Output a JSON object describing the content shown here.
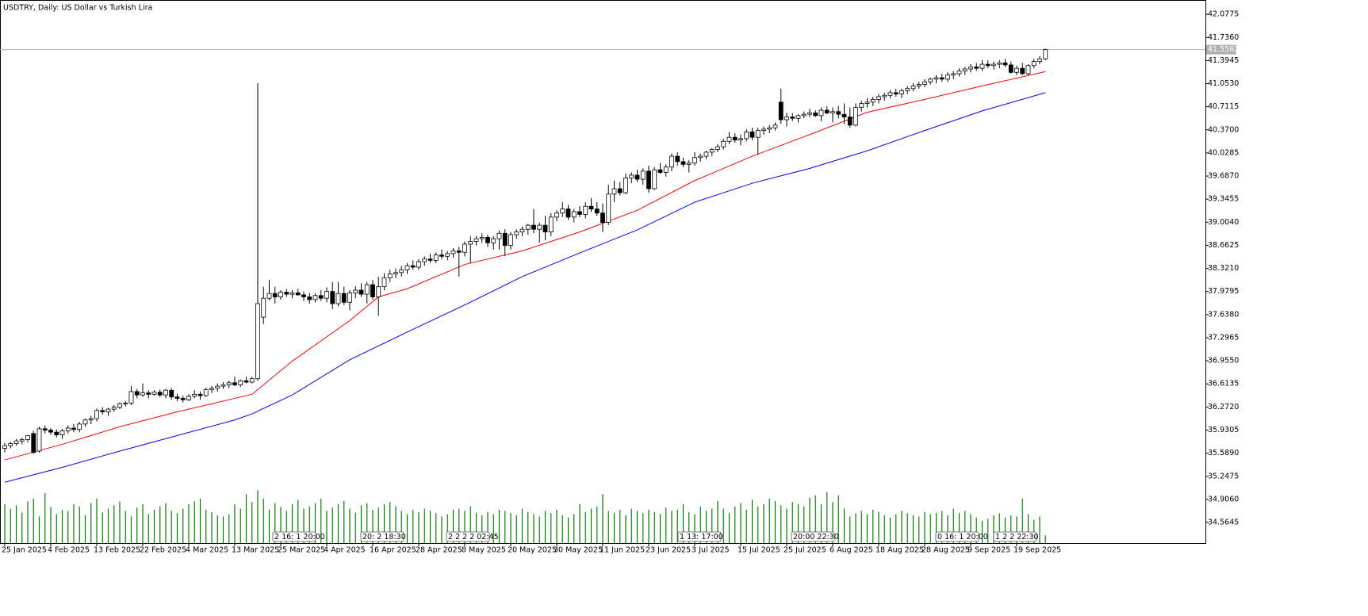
{
  "chart_data": {
    "type": "candlestick",
    "title": "USDTRY, Daily:  US Dollar vs Turkish Lira",
    "up_color": "#ffffff",
    "down_color": "#000000",
    "volume_color": "#008000",
    "ylim": [
      34.26,
      42.29
    ],
    "yticks": [
      {
        "value": 34.906,
        "label": "34.9060"
      },
      34.5645,
      35.2475,
      {
        "value": 35.589,
        "label": "35.5890"
      },
      35.9305,
      {
        "value": 36.272,
        "label": "36.2720"
      },
      36.6135,
      {
        "value": 36.955,
        "label": "36.9550"
      },
      37.2965,
      {
        "value": 37.638,
        "label": "37.6380"
      },
      37.9795,
      {
        "value": 38.321,
        "label": "38.3210"
      },
      38.6625,
      {
        "value": 39.004,
        "label": "39.0040"
      },
      39.3455,
      {
        "value": 39.687,
        "label": "39.6870"
      },
      40.0285,
      {
        "value": 40.37,
        "label": "40.3700"
      },
      40.7115,
      {
        "value": 41.053,
        "label": "41.0530"
      },
      41.3945,
      {
        "value": 41.736,
        "label": "41.7360"
      },
      42.0775
    ],
    "x_labels": [
      "25 Jan 2025",
      "4 Feb 2025",
      "13 Feb 2025",
      "22 Feb 2025",
      "4 Mar 2025",
      "13 Mar 2025",
      "25 Mar 2025",
      "4 Apr 2025",
      "16 Apr 2025",
      "28 Apr 2025",
      "8 May 2025",
      "20 May 2025",
      "30 May 2025",
      "11 Jun 2025",
      "23 Jun 2025",
      "3 Jul 2025",
      "15 Jul 2025",
      "25 Jul 2025",
      "6 Aug 2025",
      "18 Aug 2025",
      "28 Aug 2025",
      "9 Sep 2025",
      "19 Sep 2025"
    ],
    "ohlc": [
      [
        35.66,
        35.74,
        35.6,
        35.7
      ],
      [
        35.7,
        35.76,
        35.66,
        35.73
      ],
      [
        35.73,
        35.8,
        35.7,
        35.77
      ],
      [
        35.77,
        35.82,
        35.72,
        35.79
      ],
      [
        35.79,
        35.86,
        35.75,
        35.85
      ],
      [
        35.88,
        35.92,
        35.58,
        35.6
      ],
      [
        35.62,
        35.98,
        35.6,
        35.95
      ],
      [
        35.95,
        36.0,
        35.88,
        35.93
      ],
      [
        35.93,
        35.96,
        35.86,
        35.9
      ],
      [
        35.9,
        35.94,
        35.82,
        35.86
      ],
      [
        35.86,
        35.95,
        35.8,
        35.92
      ],
      [
        35.92,
        36.0,
        35.88,
        35.96
      ],
      [
        35.96,
        36.02,
        35.9,
        35.94
      ],
      [
        35.94,
        36.05,
        35.9,
        36.02
      ],
      [
        36.02,
        36.1,
        35.98,
        36.08
      ],
      [
        36.08,
        36.14,
        36.02,
        36.1
      ],
      [
        36.1,
        36.25,
        36.06,
        36.22
      ],
      [
        36.22,
        36.27,
        36.16,
        36.2
      ],
      [
        36.2,
        36.26,
        36.14,
        36.24
      ],
      [
        36.24,
        36.3,
        36.2,
        36.27
      ],
      [
        36.27,
        36.34,
        36.24,
        36.32
      ],
      [
        36.32,
        36.36,
        36.28,
        36.33
      ],
      [
        36.33,
        36.58,
        36.3,
        36.5
      ],
      [
        36.5,
        36.54,
        36.4,
        36.45
      ],
      [
        36.45,
        36.62,
        36.42,
        36.48
      ],
      [
        36.48,
        36.52,
        36.4,
        36.46
      ],
      [
        36.46,
        36.52,
        36.44,
        36.49
      ],
      [
        36.49,
        36.53,
        36.42,
        36.45
      ],
      [
        36.45,
        36.54,
        36.4,
        36.52
      ],
      [
        36.52,
        36.55,
        36.38,
        36.42
      ],
      [
        36.42,
        36.47,
        36.36,
        36.4
      ],
      [
        36.4,
        36.44,
        36.34,
        36.38
      ],
      [
        36.38,
        36.46,
        36.36,
        36.43
      ],
      [
        36.43,
        36.52,
        36.4,
        36.46
      ],
      [
        36.46,
        36.5,
        36.38,
        36.44
      ],
      [
        36.44,
        36.56,
        36.42,
        36.53
      ],
      [
        36.53,
        36.58,
        36.48,
        36.55
      ],
      [
        36.55,
        36.62,
        36.5,
        36.58
      ],
      [
        36.58,
        36.64,
        36.54,
        36.6
      ],
      [
        36.6,
        36.66,
        36.55,
        36.63
      ],
      [
        36.63,
        36.72,
        36.58,
        36.6
      ],
      [
        36.6,
        36.68,
        36.57,
        36.66
      ],
      [
        36.66,
        36.72,
        36.62,
        36.64
      ],
      [
        36.64,
        36.72,
        36.62,
        36.69
      ],
      [
        36.69,
        41.06,
        36.66,
        37.8
      ],
      [
        37.6,
        38.05,
        37.5,
        37.88
      ],
      [
        37.88,
        38.15,
        37.85,
        37.95
      ],
      [
        37.95,
        38.05,
        37.8,
        37.9
      ],
      [
        37.9,
        38.0,
        37.86,
        37.97
      ],
      [
        37.97,
        38.02,
        37.9,
        37.94
      ],
      [
        37.94,
        38.0,
        37.88,
        37.96
      ],
      [
        37.96,
        38.02,
        37.92,
        37.93
      ],
      [
        37.93,
        37.98,
        37.84,
        37.9
      ],
      [
        37.9,
        37.96,
        37.8,
        37.86
      ],
      [
        37.86,
        37.95,
        37.82,
        37.92
      ],
      [
        37.92,
        38.0,
        37.84,
        37.88
      ],
      [
        37.88,
        38.04,
        37.82,
        37.98
      ],
      [
        37.98,
        38.12,
        37.72,
        37.8
      ],
      [
        37.8,
        38.12,
        37.76,
        37.95
      ],
      [
        37.95,
        38.05,
        37.78,
        37.82
      ],
      [
        37.82,
        38.0,
        37.7,
        37.96
      ],
      [
        37.96,
        38.06,
        37.88,
        38.0
      ],
      [
        38.0,
        38.1,
        37.9,
        37.94
      ],
      [
        37.94,
        38.12,
        37.8,
        38.08
      ],
      [
        38.08,
        38.15,
        37.86,
        37.9
      ],
      [
        37.9,
        38.2,
        37.62,
        38.05
      ],
      [
        38.05,
        38.25,
        38.0,
        38.18
      ],
      [
        38.18,
        38.3,
        38.12,
        38.24
      ],
      [
        38.24,
        38.32,
        38.18,
        38.26
      ],
      [
        38.26,
        38.36,
        38.2,
        38.3
      ],
      [
        38.3,
        38.4,
        38.24,
        38.36
      ],
      [
        38.36,
        38.44,
        38.3,
        38.34
      ],
      [
        38.34,
        38.46,
        38.3,
        38.42
      ],
      [
        38.42,
        38.5,
        38.36,
        38.46
      ],
      [
        38.46,
        38.54,
        38.4,
        38.44
      ],
      [
        38.44,
        38.56,
        38.4,
        38.52
      ],
      [
        38.52,
        38.6,
        38.46,
        38.5
      ],
      [
        38.5,
        38.58,
        38.44,
        38.54
      ],
      [
        38.54,
        38.62,
        38.48,
        38.58
      ],
      [
        38.58,
        38.64,
        38.2,
        38.56
      ],
      [
        38.56,
        38.72,
        38.5,
        38.68
      ],
      [
        38.68,
        38.8,
        38.4,
        38.72
      ],
      [
        38.72,
        38.8,
        38.66,
        38.76
      ],
      [
        38.76,
        38.84,
        38.7,
        38.78
      ],
      [
        38.78,
        38.82,
        38.64,
        38.7
      ],
      [
        38.7,
        38.8,
        38.6,
        38.76
      ],
      [
        38.76,
        38.88,
        38.6,
        38.84
      ],
      [
        38.84,
        38.9,
        38.5,
        38.66
      ],
      [
        38.66,
        38.86,
        38.6,
        38.82
      ],
      [
        38.82,
        38.9,
        38.76,
        38.86
      ],
      [
        38.86,
        38.94,
        38.8,
        38.9
      ],
      [
        38.9,
        38.98,
        38.82,
        38.96
      ],
      [
        38.96,
        39.2,
        38.84,
        38.9
      ],
      [
        38.9,
        39.0,
        38.7,
        38.96
      ],
      [
        38.96,
        39.1,
        38.74,
        38.86
      ],
      [
        38.86,
        39.14,
        38.8,
        39.08
      ],
      [
        39.08,
        39.18,
        39.02,
        39.14
      ],
      [
        39.14,
        39.3,
        39.08,
        39.2
      ],
      [
        39.2,
        39.26,
        39.04,
        39.08
      ],
      [
        39.08,
        39.2,
        39.0,
        39.16
      ],
      [
        39.16,
        39.24,
        39.08,
        39.12
      ],
      [
        39.12,
        39.3,
        39.06,
        39.24
      ],
      [
        39.24,
        39.36,
        39.16,
        39.2
      ],
      [
        39.2,
        39.3,
        39.1,
        39.14
      ],
      [
        39.14,
        39.28,
        38.86,
        39.0
      ],
      [
        39.0,
        39.56,
        38.96,
        39.42
      ],
      [
        39.42,
        39.62,
        39.3,
        39.5
      ],
      [
        39.5,
        39.6,
        39.4,
        39.44
      ],
      [
        39.44,
        39.72,
        39.42,
        39.66
      ],
      [
        39.66,
        39.74,
        39.58,
        39.7
      ],
      [
        39.7,
        39.78,
        39.6,
        39.64
      ],
      [
        39.64,
        39.8,
        39.56,
        39.76
      ],
      [
        39.76,
        39.84,
        39.44,
        39.5
      ],
      [
        39.5,
        39.82,
        39.48,
        39.78
      ],
      [
        39.78,
        39.88,
        39.72,
        39.74
      ],
      [
        39.74,
        39.86,
        39.68,
        39.82
      ],
      [
        39.82,
        40.02,
        39.76,
        39.98
      ],
      [
        39.98,
        40.04,
        39.84,
        39.9
      ],
      [
        39.9,
        39.96,
        39.82,
        39.86
      ],
      [
        39.86,
        39.92,
        39.74,
        39.88
      ],
      [
        39.88,
        40.04,
        39.84,
        39.96
      ],
      [
        39.96,
        40.02,
        39.9,
        39.98
      ],
      [
        39.98,
        40.06,
        39.94,
        40.04
      ],
      [
        40.04,
        40.1,
        39.98,
        40.08
      ],
      [
        40.08,
        40.16,
        40.04,
        40.12
      ],
      [
        40.12,
        40.24,
        40.08,
        40.2
      ],
      [
        40.2,
        40.34,
        40.16,
        40.26
      ],
      [
        40.26,
        40.32,
        40.18,
        40.22
      ],
      [
        40.22,
        40.3,
        40.14,
        40.24
      ],
      [
        40.24,
        40.38,
        40.2,
        40.34
      ],
      [
        40.34,
        40.4,
        40.22,
        40.26
      ],
      [
        40.26,
        40.4,
        40.0,
        40.36
      ],
      [
        40.36,
        40.42,
        40.3,
        40.38
      ],
      [
        40.38,
        40.44,
        40.32,
        40.4
      ],
      [
        40.4,
        40.48,
        40.36,
        40.44
      ],
      [
        40.78,
        40.98,
        40.46,
        40.52
      ],
      [
        40.52,
        40.62,
        40.42,
        40.56
      ],
      [
        40.56,
        40.62,
        40.5,
        40.54
      ],
      [
        40.54,
        40.6,
        40.48,
        40.58
      ],
      [
        40.58,
        40.64,
        40.54,
        40.6
      ],
      [
        40.6,
        40.68,
        40.56,
        40.62
      ],
      [
        40.62,
        40.66,
        40.56,
        40.58
      ],
      [
        40.58,
        40.7,
        40.5,
        40.66
      ],
      [
        40.66,
        40.72,
        40.6,
        40.62
      ],
      [
        40.62,
        40.7,
        40.48,
        40.64
      ],
      [
        40.64,
        40.72,
        40.54,
        40.6
      ],
      [
        40.6,
        40.76,
        40.46,
        40.56
      ],
      [
        40.56,
        40.7,
        40.4,
        40.44
      ],
      [
        40.44,
        40.76,
        40.42,
        40.7
      ],
      [
        40.7,
        40.8,
        40.64,
        40.76
      ],
      [
        40.76,
        40.84,
        40.7,
        40.78
      ],
      [
        40.78,
        40.86,
        40.72,
        40.82
      ],
      [
        40.82,
        40.9,
        40.76,
        40.86
      ],
      [
        40.86,
        40.92,
        40.8,
        40.88
      ],
      [
        40.88,
        40.96,
        40.84,
        40.92
      ],
      [
        40.92,
        40.98,
        40.86,
        40.9
      ],
      [
        40.9,
        40.98,
        40.84,
        40.95
      ],
      [
        40.95,
        41.02,
        40.9,
        40.98
      ],
      [
        40.98,
        41.06,
        40.94,
        41.02
      ],
      [
        41.02,
        41.08,
        40.98,
        41.04
      ],
      [
        41.04,
        41.12,
        41.0,
        41.08
      ],
      [
        41.08,
        41.14,
        41.04,
        41.12
      ],
      [
        41.12,
        41.18,
        41.06,
        41.14
      ],
      [
        41.14,
        41.2,
        41.08,
        41.12
      ],
      [
        41.12,
        41.22,
        41.08,
        41.18
      ],
      [
        41.18,
        41.24,
        41.12,
        41.2
      ],
      [
        41.2,
        41.28,
        41.16,
        41.24
      ],
      [
        41.24,
        41.3,
        41.18,
        41.27
      ],
      [
        41.27,
        41.34,
        41.22,
        41.3
      ],
      [
        41.3,
        41.36,
        41.24,
        41.28
      ],
      [
        41.28,
        41.4,
        41.24,
        41.34
      ],
      [
        41.34,
        41.4,
        41.28,
        41.32
      ],
      [
        41.32,
        41.38,
        41.26,
        41.34
      ],
      [
        41.34,
        41.4,
        41.28,
        41.36
      ],
      [
        41.36,
        41.42,
        41.3,
        41.33
      ],
      [
        41.33,
        41.38,
        41.2,
        41.22
      ],
      [
        41.22,
        41.32,
        41.18,
        41.28
      ],
      [
        41.28,
        41.36,
        41.18,
        41.2
      ],
      [
        41.2,
        41.34,
        41.18,
        41.32
      ],
      [
        41.32,
        41.42,
        41.28,
        41.38
      ],
      [
        41.38,
        41.46,
        41.34,
        41.42
      ],
      [
        41.42,
        41.57,
        41.4,
        41.5562
      ]
    ],
    "moving_averages": [
      {
        "color": "#ff0000",
        "x": [
          0,
          10,
          20,
          30,
          40,
          43,
          50,
          60,
          65,
          70,
          80,
          90,
          100,
          110,
          120,
          130,
          140,
          150,
          160,
          170,
          181
        ],
        "values": [
          35.49,
          35.72,
          35.98,
          36.2,
          36.4,
          36.46,
          36.95,
          37.55,
          37.9,
          38.02,
          38.38,
          38.58,
          38.86,
          39.18,
          39.62,
          39.98,
          40.3,
          40.63,
          40.82,
          41.02,
          41.23
        ]
      },
      {
        "color": "#0000ff",
        "x": [
          0,
          10,
          20,
          30,
          40,
          43,
          50,
          60,
          70,
          80,
          90,
          100,
          110,
          120,
          130,
          140,
          150,
          160,
          170,
          181
        ],
        "values": [
          35.16,
          35.38,
          35.62,
          35.85,
          36.08,
          36.17,
          36.45,
          36.97,
          37.38,
          37.78,
          38.2,
          38.55,
          38.89,
          39.3,
          39.58,
          39.8,
          40.06,
          40.36,
          40.65,
          40.92
        ]
      }
    ],
    "volumes": [
      70,
      62,
      68,
      55,
      75,
      80,
      48,
      90,
      65,
      52,
      60,
      58,
      70,
      66,
      50,
      72,
      80,
      55,
      62,
      68,
      75,
      58,
      48,
      64,
      70,
      52,
      60,
      66,
      72,
      58,
      54,
      62,
      70,
      75,
      80,
      60,
      56,
      50,
      48,
      52,
      70,
      62,
      88,
      74,
      95,
      80,
      60,
      72,
      65,
      58,
      70,
      78,
      62,
      66,
      72,
      80,
      58,
      64,
      70,
      76,
      62,
      55,
      68,
      72,
      60,
      64,
      70,
      74,
      66,
      58,
      52,
      60,
      56,
      62,
      58,
      54,
      48,
      52,
      60,
      62,
      58,
      66,
      54,
      50,
      56,
      52,
      60,
      58,
      54,
      50,
      62,
      56,
      52,
      48,
      58,
      54,
      60,
      50,
      46,
      52,
      70,
      56,
      62,
      66,
      88,
      58,
      54,
      60,
      50,
      62,
      58,
      54,
      60,
      56,
      52,
      64,
      58,
      60,
      70,
      56,
      52,
      66,
      58,
      62,
      76,
      62,
      54,
      66,
      72,
      60,
      78,
      66,
      70,
      80,
      76,
      68,
      62,
      74,
      70,
      66,
      82,
      86,
      70,
      92,
      74,
      86,
      62,
      48,
      54,
      58,
      52,
      60,
      56,
      50,
      46,
      52,
      58,
      54,
      50,
      48,
      56,
      52,
      54,
      58,
      50,
      62,
      54,
      58,
      52,
      46,
      40,
      44,
      50,
      54,
      46,
      50,
      48,
      80,
      52,
      42,
      48,
      14
    ]
  },
  "events": [
    "2 16: 1 20:00",
    "20: 2 18:30",
    "2 2 2 2 02:45",
    "1 13: 17:00",
    "20:00 22:30",
    "0 16: 1 20:00",
    "1 2 2 22:30"
  ]
}
